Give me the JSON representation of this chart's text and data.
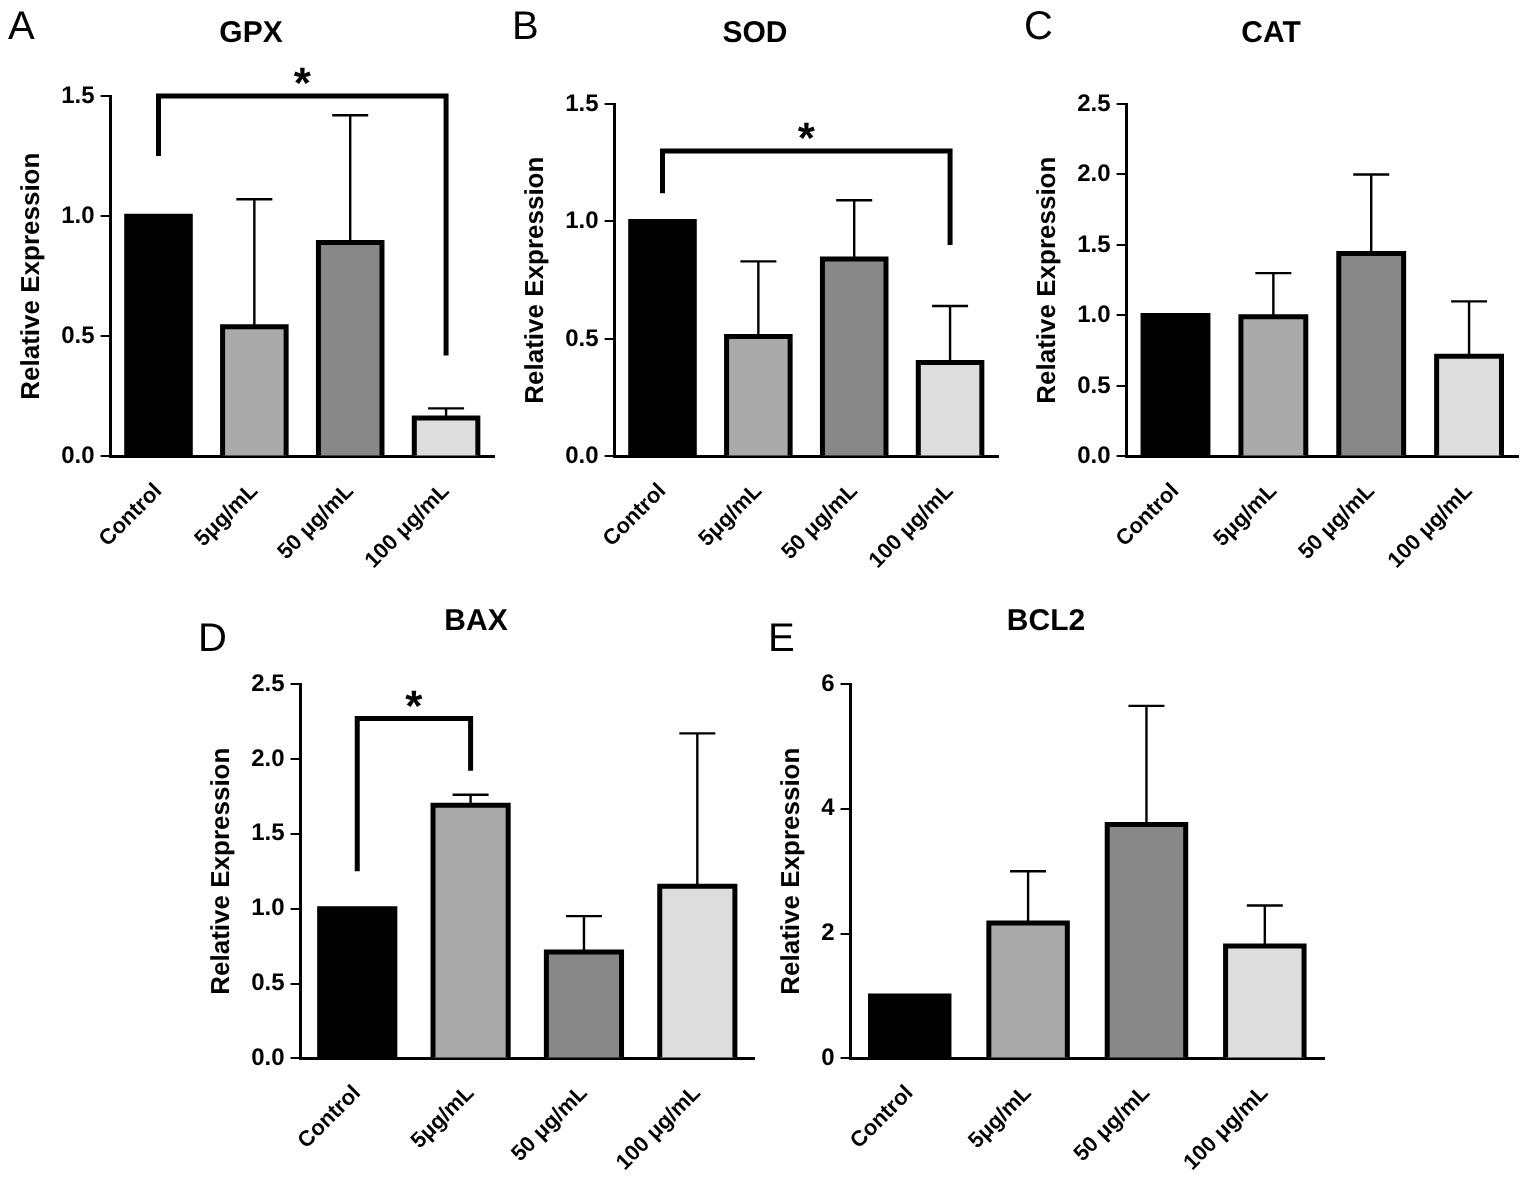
{
  "chart_data": [
    {
      "type": "bar",
      "title": "GPX",
      "ylabel": "Relative Expression",
      "annotations": [
        "A",
        "*"
      ],
      "categories": [
        "Control",
        "5μg/mL",
        "50 μg/mL",
        "100 μg/mL"
      ],
      "values": [
        1.0,
        0.54,
        0.89,
        0.16
      ],
      "errors": [
        null,
        [
          0.54,
          1.07
        ],
        [
          0.89,
          1.42
        ],
        [
          0.16,
          0.2
        ]
      ],
      "colors": [
        "#000000",
        "#aaaaaa",
        "#888888",
        "#dddddd"
      ],
      "ylim": [
        0,
        1.5
      ],
      "yticks": [
        {
          "value": 0,
          "label": "0.0"
        },
        0.5,
        {
          "value": 1,
          "label": "1.0"
        },
        1.5
      ],
      "grid": false
    },
    {
      "type": "bar",
      "title": "SOD",
      "ylabel": "Relative Expression",
      "annotations": [
        "B",
        "*"
      ],
      "categories": [
        "Control",
        "5μg/mL",
        "50 μg/mL",
        "100 μg/mL"
      ],
      "values": [
        1.0,
        0.51,
        0.84,
        0.4
      ],
      "errors": [
        null,
        [
          0.51,
          0.83
        ],
        [
          0.84,
          1.09
        ],
        [
          0.4,
          0.64
        ]
      ],
      "colors": [
        "#000000",
        "#aaaaaa",
        "#888888",
        "#dddddd"
      ],
      "ylim": [
        0,
        1.5
      ],
      "yticks": [
        {
          "value": 0,
          "label": "0.0"
        },
        0.5,
        {
          "value": 1,
          "label": "1.0"
        },
        1.5
      ],
      "grid": false
    },
    {
      "type": "bar",
      "title": "CAT",
      "ylabel": "Relative Expression",
      "annotations": [
        "C"
      ],
      "categories": [
        "Control",
        "5μg/mL",
        "50 μg/mL",
        "100 μg/mL"
      ],
      "values": [
        1.0,
        0.99,
        1.44,
        0.71
      ],
      "errors": [
        null,
        [
          0.99,
          1.3
        ],
        [
          1.44,
          2.0
        ],
        [
          0.71,
          1.1
        ]
      ],
      "colors": [
        "#000000",
        "#aaaaaa",
        "#888888",
        "#dddddd"
      ],
      "ylim": [
        0,
        2.5
      ],
      "yticks": [
        {
          "value": 0,
          "label": "0.0"
        },
        0.5,
        {
          "value": 1,
          "label": "1.0"
        },
        1.5,
        {
          "value": 2,
          "label": "2.0"
        },
        2.5
      ],
      "grid": false
    },
    {
      "type": "bar",
      "title": "BAX",
      "ylabel": "Relative Expression",
      "annotations": [
        "D",
        "*"
      ],
      "categories": [
        "Control",
        "5μg/mL",
        "50 μg/mL",
        "100 μg/mL"
      ],
      "values": [
        1.0,
        1.69,
        0.71,
        1.15
      ],
      "errors": [
        null,
        [
          1.69,
          1.76
        ],
        [
          0.71,
          0.95
        ],
        [
          1.15,
          2.17
        ]
      ],
      "colors": [
        "#000000",
        "#aaaaaa",
        "#888888",
        "#dddddd"
      ],
      "ylim": [
        0,
        2.5
      ],
      "yticks": [
        {
          "value": 0,
          "label": "0.0"
        },
        0.5,
        {
          "value": 1,
          "label": "1.0"
        },
        1.5,
        {
          "value": 2,
          "label": "2.0"
        },
        2.5
      ],
      "grid": false
    },
    {
      "type": "bar",
      "title": "BCL2",
      "ylabel": "Relative Expression",
      "annotations": [
        "E"
      ],
      "categories": [
        "Control",
        "5μg/mL",
        "50 μg/mL",
        "100 μg/mL"
      ],
      "values": [
        1.0,
        2.17,
        3.75,
        1.8
      ],
      "errors": [
        null,
        [
          2.17,
          3.0
        ],
        [
          3.75,
          5.65
        ],
        [
          1.8,
          2.45
        ]
      ],
      "colors": [
        "#000000",
        "#aaaaaa",
        "#888888",
        "#dddddd"
      ],
      "ylim": [
        0,
        6
      ],
      "yticks": [
        0,
        2,
        4,
        6
      ],
      "grid": false
    }
  ]
}
